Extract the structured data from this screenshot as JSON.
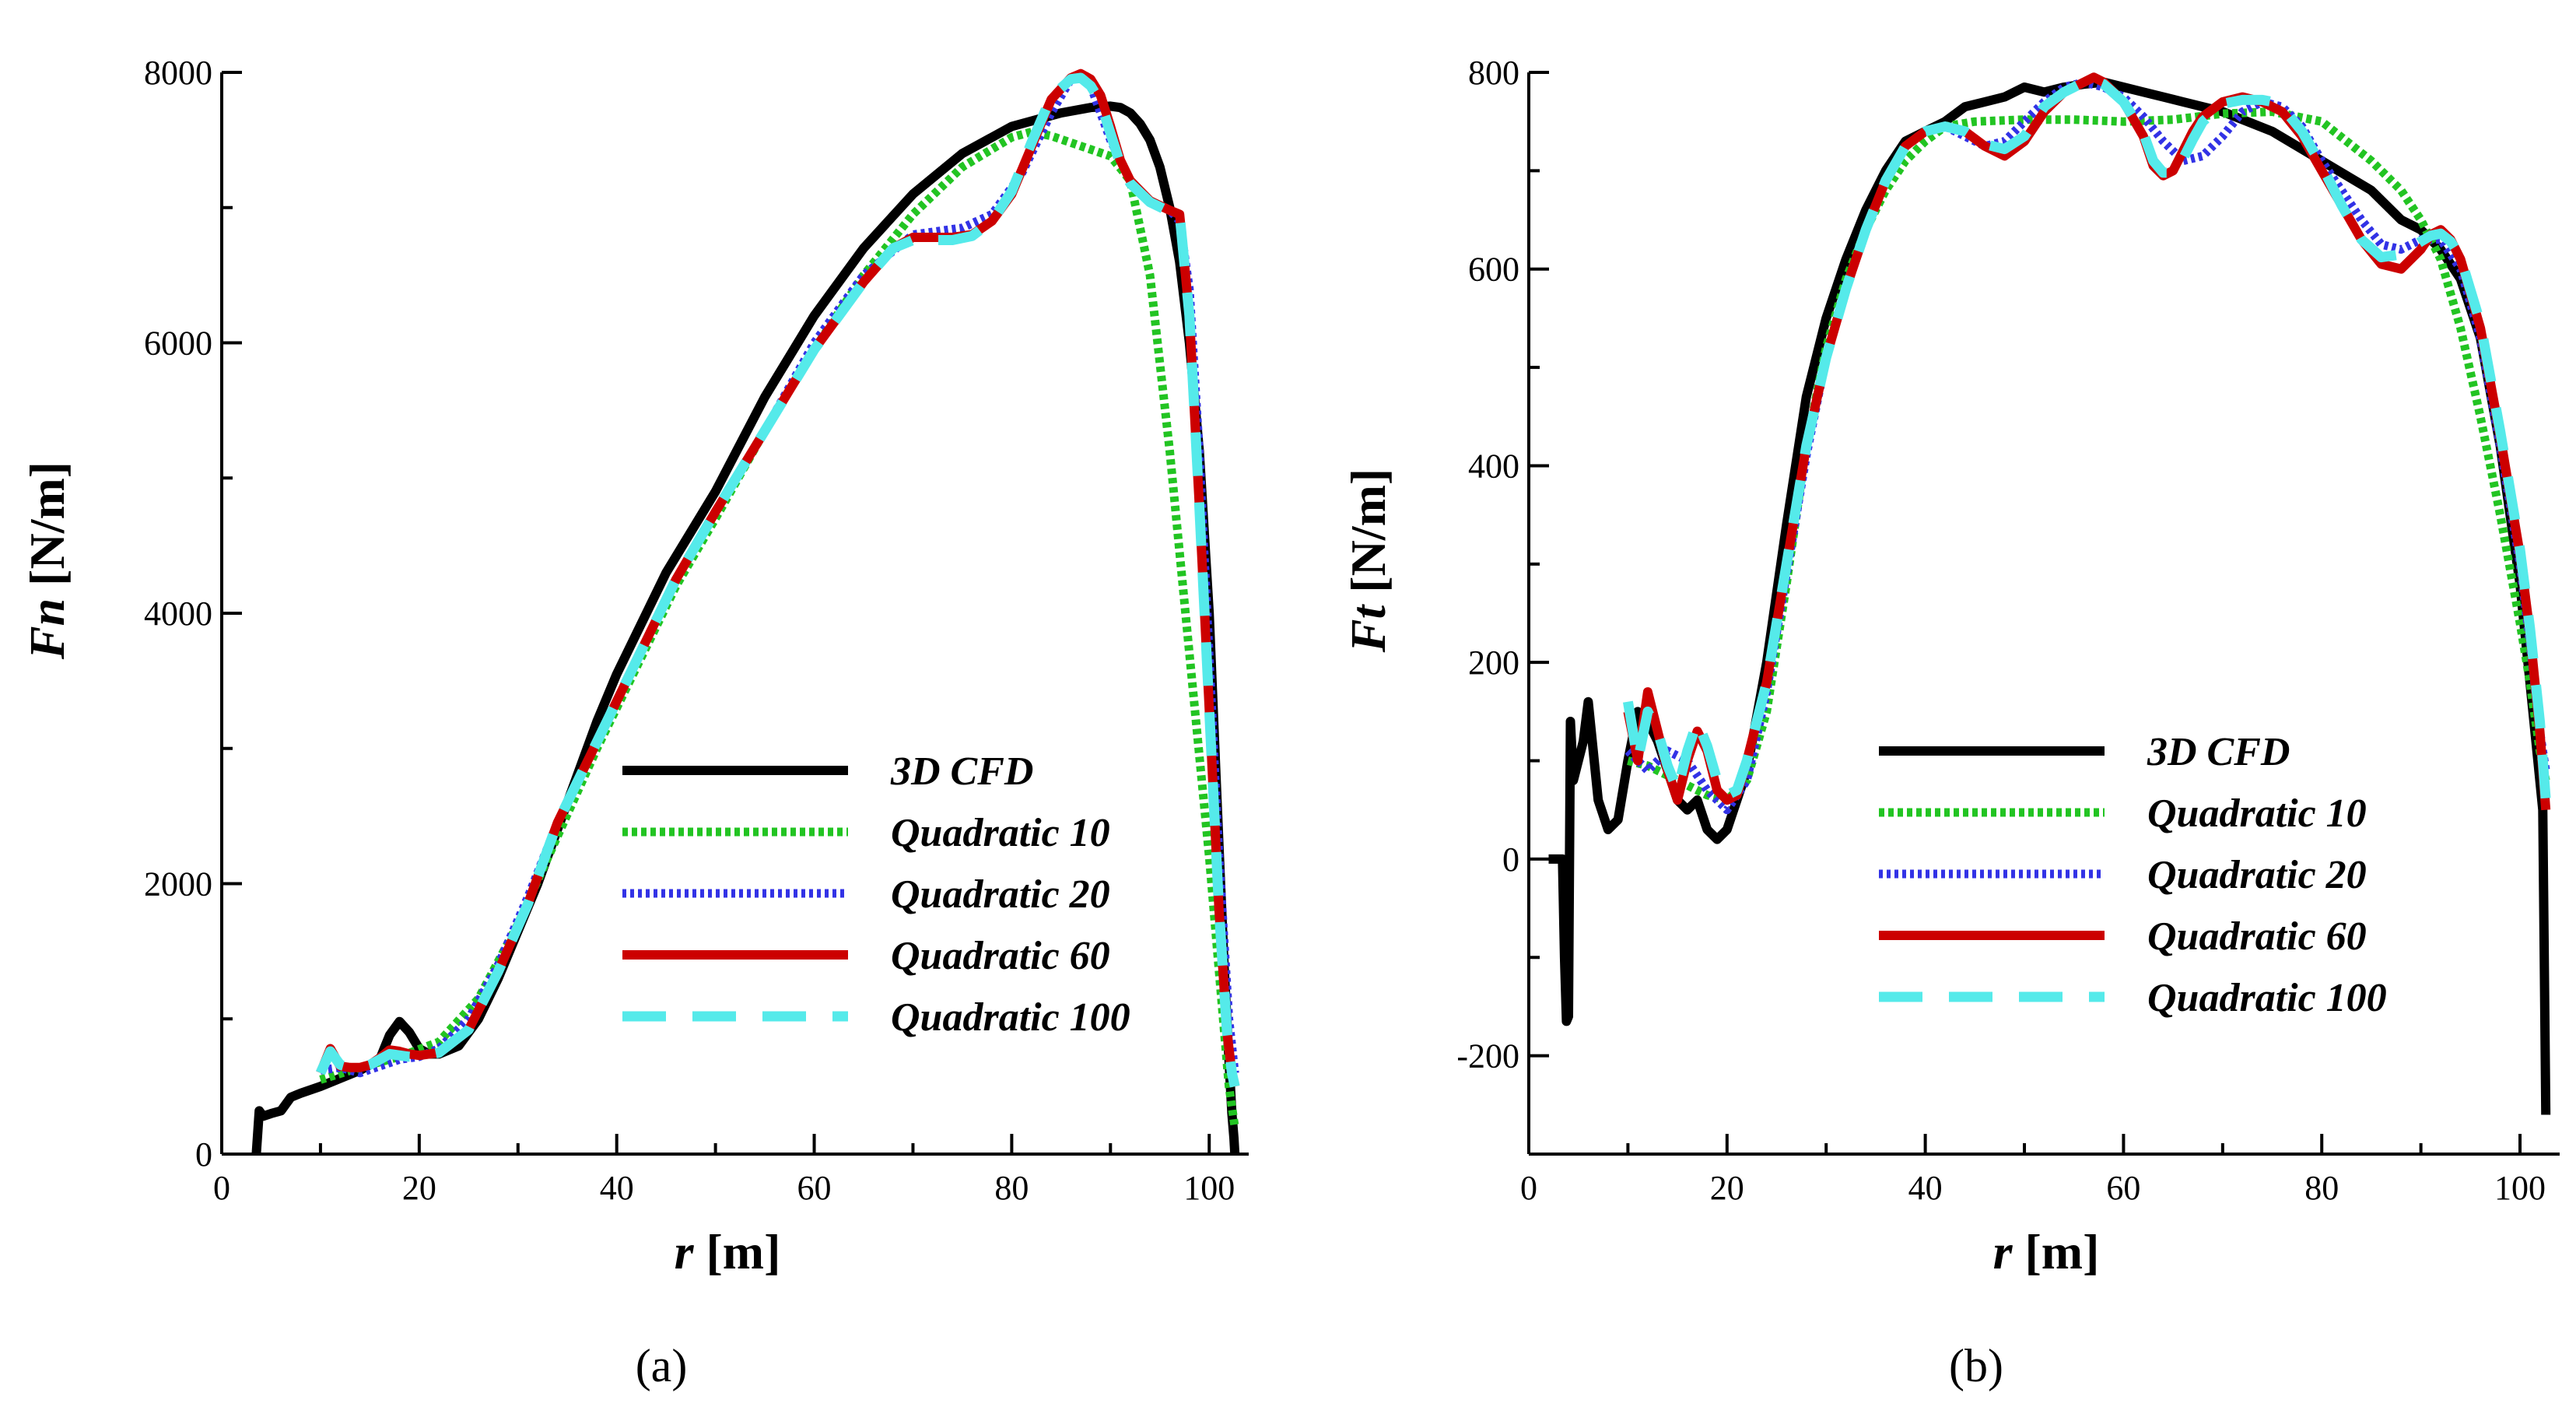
{
  "colors": {
    "3D CFD": "#000000",
    "Quadratic 10": "#22c422",
    "Quadratic 20": "#3232e6",
    "Quadratic 60": "#cc0000",
    "Quadratic 100": "#55eaea"
  },
  "chart_data": [
    {
      "type": "line",
      "caption": "(a)",
      "xlabel_var": "r",
      "xlabel_unit": "[m]",
      "ylabel_var": "Fn",
      "ylabel_unit": "[N/m]",
      "xlim": [
        0,
        104
      ],
      "ylim": [
        0,
        8000
      ],
      "xticks": [
        0,
        20,
        40,
        60,
        80,
        100
      ],
      "yticks": [
        0,
        2000,
        4000,
        6000,
        8000
      ],
      "legend_position": "bottom-right",
      "series": [
        {
          "name": "3D CFD",
          "x": [
            3.5,
            3.8,
            4.2,
            5,
            6,
            7,
            8,
            10,
            12,
            14,
            16,
            17,
            18,
            19,
            20,
            21,
            22,
            24,
            26,
            28,
            30,
            32,
            34,
            36,
            38,
            40,
            45,
            50,
            55,
            60,
            65,
            70,
            75,
            80,
            85,
            88,
            90,
            91,
            92,
            93,
            94,
            95,
            96,
            97,
            98,
            99,
            100,
            100.8,
            101.5,
            102,
            102.3,
            102.5,
            102.6
          ],
          "y": [
            0,
            320,
            280,
            300,
            320,
            420,
            450,
            500,
            560,
            620,
            700,
            880,
            980,
            900,
            780,
            740,
            740,
            800,
            1000,
            1300,
            1650,
            2000,
            2400,
            2800,
            3200,
            3550,
            4300,
            4900,
            5600,
            6200,
            6700,
            7100,
            7400,
            7600,
            7700,
            7740,
            7750,
            7740,
            7700,
            7620,
            7500,
            7300,
            7000,
            6600,
            6000,
            5200,
            4000,
            2600,
            1400,
            700,
            300,
            120,
            0
          ]
        },
        {
          "name": "Quadratic 10",
          "x": [
            10,
            14,
            18,
            22,
            26,
            30,
            34,
            38,
            42,
            46,
            50,
            55,
            60,
            65,
            70,
            75,
            80,
            82,
            84,
            86,
            88,
            90,
            92,
            94,
            96,
            98,
            100,
            102,
            102.6
          ],
          "y": [
            550,
            640,
            720,
            830,
            1150,
            1700,
            2350,
            3000,
            3600,
            4200,
            4700,
            5350,
            5950,
            6500,
            6950,
            7300,
            7520,
            7560,
            7530,
            7480,
            7430,
            7380,
            7200,
            6500,
            5200,
            3700,
            2200,
            500,
            200
          ]
        },
        {
          "name": "Quadratic 20",
          "x": [
            10,
            12,
            14,
            16,
            18,
            20,
            22,
            25,
            28,
            31,
            34,
            38,
            42,
            46,
            50,
            55,
            60,
            65,
            70,
            75,
            78,
            81,
            84,
            86,
            87,
            88,
            90,
            92,
            94,
            96,
            97,
            98,
            99,
            100,
            101,
            102,
            102.6
          ],
          "y": [
            620,
            640,
            600,
            650,
            700,
            720,
            780,
            1000,
            1400,
            1900,
            2450,
            3050,
            3650,
            4250,
            4750,
            5350,
            6000,
            6500,
            6800,
            6850,
            6950,
            7250,
            7700,
            7950,
            7980,
            7900,
            7500,
            7200,
            7050,
            6980,
            6900,
            6400,
            5200,
            3700,
            2200,
            1000,
            600
          ]
        },
        {
          "name": "Quadratic 60",
          "x": [
            10,
            11,
            12,
            13,
            14,
            15,
            16,
            17,
            18,
            19,
            20,
            22,
            25,
            28,
            31,
            34,
            38,
            42,
            46,
            50,
            55,
            60,
            65,
            68,
            70,
            72,
            74,
            76,
            78,
            80,
            82,
            84,
            86,
            87,
            88,
            89,
            90,
            91,
            92,
            94,
            96,
            97,
            98,
            99,
            100,
            101,
            101.8,
            102.3,
            102.6
          ],
          "y": [
            600,
            780,
            650,
            640,
            640,
            660,
            710,
            770,
            760,
            740,
            730,
            750,
            920,
            1350,
            1850,
            2450,
            3050,
            3650,
            4250,
            4750,
            5350,
            5950,
            6450,
            6700,
            6780,
            6780,
            6780,
            6800,
            6900,
            7100,
            7450,
            7800,
            7960,
            7990,
            7950,
            7830,
            7600,
            7350,
            7200,
            7050,
            6980,
            6950,
            6200,
            4800,
            3300,
            1800,
            900,
            600,
            500
          ]
        },
        {
          "name": "Quadratic 100",
          "x": [
            10,
            11,
            12,
            13,
            14,
            15,
            16,
            17,
            18,
            19,
            20,
            22,
            25,
            28,
            31,
            34,
            38,
            42,
            46,
            50,
            55,
            60,
            65,
            68,
            70,
            72,
            74,
            76,
            78,
            80,
            82,
            84,
            86,
            87,
            88,
            89,
            90,
            91,
            92,
            94,
            96,
            97,
            98,
            99,
            100,
            101,
            101.8,
            102.3,
            102.6
          ],
          "y": [
            600,
            760,
            660,
            640,
            640,
            660,
            700,
            740,
            730,
            720,
            720,
            750,
            920,
            1350,
            1850,
            2450,
            3050,
            3650,
            4250,
            4750,
            5350,
            5950,
            6450,
            6700,
            6760,
            6760,
            6760,
            6790,
            6900,
            7120,
            7480,
            7820,
            7950,
            7960,
            7900,
            7780,
            7550,
            7320,
            7180,
            7040,
            6970,
            6950,
            6200,
            4800,
            3300,
            1800,
            900,
            600,
            500
          ]
        }
      ]
    },
    {
      "type": "line",
      "caption": "(b)",
      "xlabel_var": "r",
      "xlabel_unit": "[m]",
      "ylabel_var": "Ft",
      "ylabel_unit": "[N/m]",
      "xlim": [
        0,
        104
      ],
      "ylim": [
        -300,
        800
      ],
      "xticks": [
        0,
        20,
        40,
        60,
        80,
        100
      ],
      "yticks": [
        -200,
        0,
        200,
        400,
        600,
        800
      ],
      "legend_position": "bottom-right",
      "series": [
        {
          "name": "3D CFD",
          "x": [
            2,
            3.4,
            3.6,
            3.8,
            4,
            4.2,
            4.5,
            5,
            5.5,
            6,
            7,
            8,
            9,
            10,
            11,
            12,
            13,
            14,
            15,
            16,
            17,
            18,
            19,
            20,
            21,
            22,
            24,
            26,
            28,
            30,
            32,
            34,
            36,
            38,
            40,
            42,
            44,
            46,
            48,
            50,
            52,
            54,
            56,
            58,
            60,
            62,
            64,
            66,
            68,
            70,
            75,
            80,
            85,
            88,
            90,
            92,
            94,
            96,
            98,
            100,
            101,
            101.8,
            102.3,
            102.6
          ],
          "y": [
            0,
            0,
            -100,
            -165,
            -160,
            140,
            80,
            100,
            120,
            160,
            60,
            30,
            40,
            100,
            150,
            140,
            120,
            90,
            60,
            50,
            60,
            30,
            20,
            30,
            60,
            90,
            200,
            340,
            470,
            550,
            610,
            660,
            700,
            730,
            740,
            750,
            765,
            770,
            775,
            785,
            780,
            785,
            788,
            790,
            785,
            780,
            775,
            770,
            765,
            760,
            740,
            710,
            680,
            650,
            640,
            620,
            590,
            530,
            420,
            280,
            180,
            100,
            50,
            -260
          ]
        },
        {
          "name": "Quadratic 10",
          "x": [
            10,
            12,
            14,
            16,
            18,
            20,
            22,
            24,
            26,
            28,
            30,
            32,
            34,
            36,
            38,
            40,
            42,
            45,
            50,
            55,
            60,
            65,
            70,
            75,
            80,
            85,
            88,
            90,
            92,
            94,
            96,
            98,
            100,
            101,
            102,
            102.6
          ],
          "y": [
            100,
            95,
            85,
            75,
            65,
            60,
            80,
            150,
            280,
            420,
            520,
            590,
            640,
            680,
            710,
            730,
            745,
            750,
            752,
            752,
            750,
            752,
            758,
            760,
            750,
            710,
            680,
            650,
            610,
            540,
            450,
            350,
            240,
            180,
            110,
            80
          ]
        },
        {
          "name": "Quadratic 20",
          "x": [
            10,
            12,
            14,
            16,
            18,
            20,
            22,
            24,
            26,
            28,
            30,
            32,
            34,
            36,
            38,
            40,
            42,
            44,
            46,
            48,
            50,
            52,
            54,
            56,
            58,
            60,
            62,
            64,
            66,
            68,
            70,
            72,
            74,
            76,
            78,
            80,
            82,
            84,
            86,
            88,
            90,
            92,
            94,
            96,
            98,
            100,
            101,
            102,
            102.6
          ],
          "y": [
            110,
            90,
            110,
            100,
            70,
            50,
            80,
            170,
            290,
            410,
            510,
            580,
            640,
            690,
            725,
            740,
            745,
            735,
            725,
            730,
            750,
            770,
            785,
            790,
            785,
            775,
            755,
            730,
            710,
            715,
            735,
            760,
            770,
            765,
            745,
            710,
            680,
            650,
            625,
            620,
            630,
            630,
            600,
            530,
            420,
            300,
            220,
            130,
            90
          ]
        },
        {
          "name": "Quadratic 60",
          "x": [
            10,
            11,
            12,
            13,
            14,
            15,
            16,
            17,
            18,
            19,
            20,
            21,
            22,
            24,
            26,
            28,
            30,
            32,
            34,
            36,
            38,
            40,
            42,
            44,
            46,
            48,
            50,
            52,
            54,
            56,
            57,
            58,
            60,
            62,
            63,
            64,
            65,
            66,
            67,
            68,
            70,
            72,
            74,
            75,
            76,
            78,
            80,
            82,
            84,
            86,
            88,
            90,
            91,
            92,
            93,
            94,
            96,
            98,
            100,
            101,
            102,
            102.6
          ],
          "y": [
            150,
            100,
            170,
            130,
            90,
            60,
            100,
            130,
            110,
            70,
            60,
            65,
            100,
            180,
            300,
            420,
            510,
            580,
            640,
            690,
            725,
            740,
            745,
            740,
            725,
            715,
            730,
            760,
            780,
            790,
            795,
            790,
            770,
            735,
            705,
            695,
            700,
            720,
            740,
            755,
            770,
            775,
            770,
            765,
            760,
            735,
            700,
            665,
            630,
            605,
            600,
            620,
            635,
            640,
            630,
            610,
            540,
            430,
            310,
            230,
            130,
            50
          ]
        },
        {
          "name": "Quadratic 100",
          "x": [
            10,
            11,
            12,
            13,
            14,
            15,
            16,
            17,
            18,
            19,
            20,
            21,
            22,
            24,
            26,
            28,
            30,
            32,
            34,
            36,
            38,
            40,
            42,
            44,
            46,
            48,
            50,
            52,
            54,
            56,
            57,
            58,
            60,
            62,
            63,
            64,
            65,
            66,
            67,
            68,
            70,
            72,
            74,
            75,
            76,
            78,
            80,
            82,
            84,
            86,
            88,
            90,
            91,
            92,
            93,
            94,
            96,
            98,
            100,
            101,
            102,
            102.6
          ],
          "y": [
            160,
            100,
            150,
            130,
            95,
            70,
            110,
            140,
            115,
            80,
            65,
            70,
            100,
            180,
            300,
            420,
            510,
            580,
            640,
            690,
            725,
            740,
            745,
            740,
            727,
            722,
            735,
            765,
            780,
            790,
            792,
            788,
            770,
            738,
            710,
            698,
            698,
            712,
            732,
            750,
            768,
            772,
            772,
            770,
            765,
            740,
            705,
            665,
            630,
            612,
            615,
            628,
            634,
            636,
            628,
            612,
            545,
            435,
            315,
            235,
            140,
            60
          ]
        }
      ]
    }
  ]
}
